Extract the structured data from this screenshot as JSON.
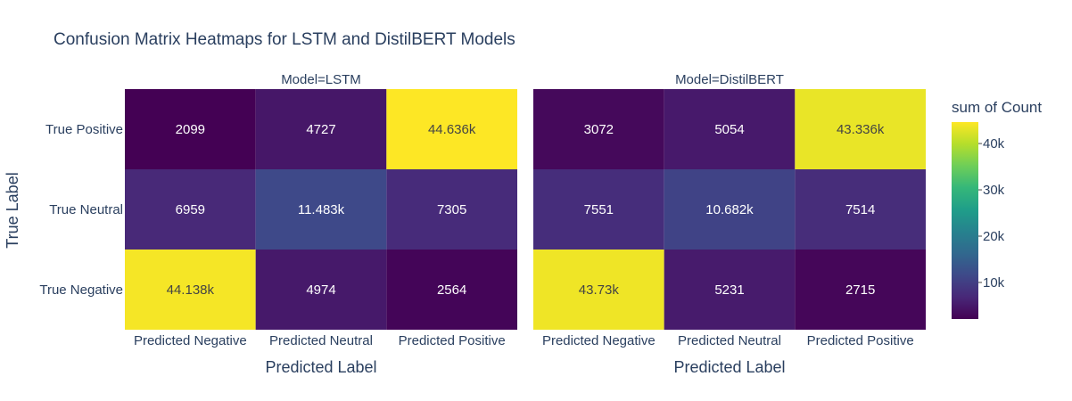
{
  "chart_data": {
    "type": "heatmap",
    "title": "Confusion Matrix Heatmaps for LSTM and DistilBERT Models",
    "xlabel": "Predicted Label",
    "ylabel": "True Label",
    "x_categories": [
      "Predicted Negative",
      "Predicted Neutral",
      "Predicted Positive"
    ],
    "y_categories": [
      "True Positive",
      "True Neutral",
      "True Negative"
    ],
    "colorbar": {
      "title": "sum of Count",
      "tick_values": [
        10000,
        20000,
        30000,
        40000
      ],
      "tick_labels": [
        "10k",
        "20k",
        "30k",
        "40k"
      ],
      "range": [
        2099,
        44636
      ],
      "colorscale": "viridis"
    },
    "panels": [
      {
        "label": "Model=LSTM",
        "values": [
          [
            2099,
            4727,
            44636
          ],
          [
            6959,
            11483,
            7305
          ],
          [
            44138,
            4974,
            2564
          ]
        ],
        "cell_labels": [
          [
            "2099",
            "4727",
            "44.636k"
          ],
          [
            "6959",
            "11.483k",
            "7305"
          ],
          [
            "44.138k",
            "4974",
            "2564"
          ]
        ]
      },
      {
        "label": "Model=DistilBERT",
        "values": [
          [
            3072,
            5054,
            43336
          ],
          [
            7551,
            10682,
            7514
          ],
          [
            43730,
            5231,
            2715
          ]
        ],
        "cell_labels": [
          [
            "3072",
            "5054",
            "43.336k"
          ],
          [
            "7551",
            "10.682k",
            "7514"
          ],
          [
            "43.73k",
            "5231",
            "2715"
          ]
        ]
      }
    ]
  }
}
